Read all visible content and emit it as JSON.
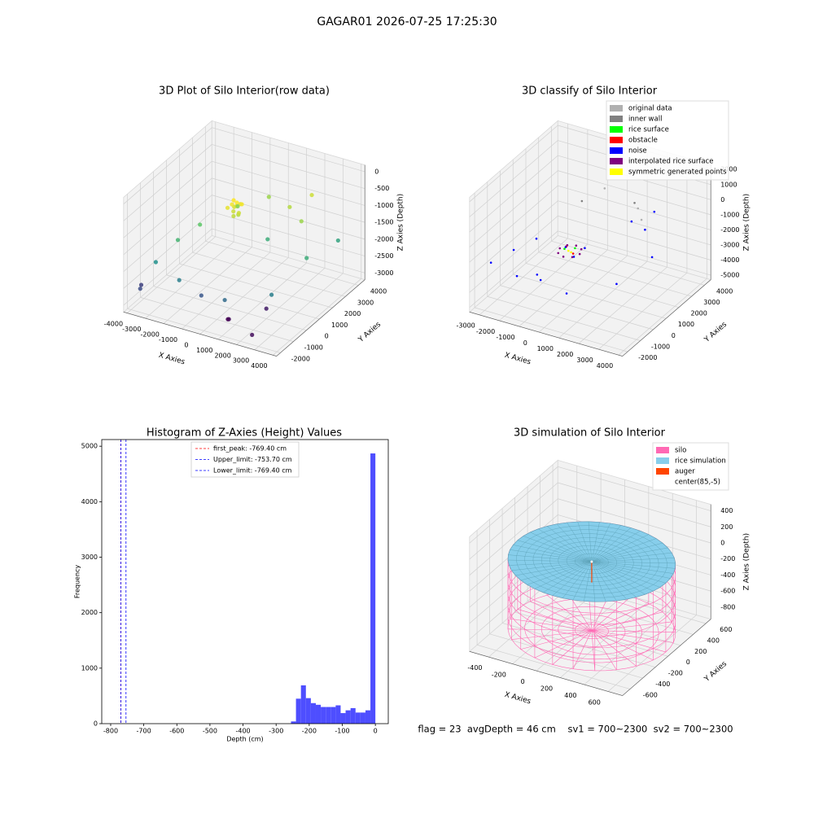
{
  "title": "GAGAR01 2026-07-25 17:25:30",
  "chart_data": [
    {
      "type": "scatter3d",
      "title": "3D Plot of Silo Interior(row data)",
      "xlabel": "X Axies",
      "ylabel": "Y Axies",
      "zlabel": "Z Axies (Depth)",
      "xlim": [
        -4200,
        4200
      ],
      "ylim": [
        -2300,
        4500
      ],
      "zlim": [
        -3200,
        200
      ],
      "xticks": [
        -4000,
        -3000,
        -2000,
        -1000,
        0,
        1000,
        2000,
        3000,
        4000
      ],
      "yticks": [
        -2000,
        -1000,
        0,
        1000,
        2000,
        3000,
        4000
      ],
      "zticks": [
        -3000,
        -2500,
        -2000,
        -1500,
        -1000,
        -500,
        0
      ],
      "colormap": "viridis",
      "points": {
        "x": [
          -700,
          -600,
          -500,
          -450,
          -400,
          -350,
          -300,
          -250,
          -200,
          -550,
          -150,
          -650,
          -3000,
          -2500,
          -2000,
          1500,
          2500,
          3500,
          3000,
          1000,
          -500,
          -1500,
          2000,
          0,
          -1000,
          1000,
          3800,
          -3500,
          -3800,
          800,
          600,
          2500,
          2000
        ],
        "y": [
          800,
          1000,
          1200,
          900,
          1100,
          1300,
          700,
          1000,
          1200,
          1100,
          900,
          1200,
          -1500,
          -500,
          500,
          2500,
          2000,
          1000,
          -1000,
          -1800,
          -1500,
          -1800,
          3500,
          3000,
          2000,
          1500,
          3000,
          -2000,
          -1500,
          -1200,
          -1000,
          -1800,
          0
        ],
        "z": [
          -600,
          -550,
          -650,
          -700,
          -500,
          -600,
          -750,
          -800,
          -550,
          -650,
          -700,
          -500,
          -1800,
          -1400,
          -1200,
          -800,
          -900,
          -1500,
          -2000,
          -2200,
          -2400,
          -2000,
          -700,
          -900,
          -1000,
          -1500,
          -1600,
          -2500,
          -2600,
          -3000,
          -3100,
          -3000,
          -2900
        ]
      }
    },
    {
      "type": "scatter3d",
      "title": "3D classify of Silo Interior",
      "xlabel": "X Axies",
      "ylabel": "Y Axies",
      "zlabel": "Z Axies (Depth)",
      "xlim": [
        -3500,
        4200
      ],
      "ylim": [
        -2400,
        4500
      ],
      "zlim": [
        -5300,
        2300
      ],
      "xticks": [
        -3000,
        -2000,
        -1000,
        0,
        1000,
        2000,
        3000,
        4000
      ],
      "yticks": [
        -2000,
        -1000,
        0,
        1000,
        2000,
        3000,
        4000
      ],
      "zticks": [
        -5000,
        -4000,
        -3000,
        -2000,
        -1000,
        0,
        1000,
        2000
      ],
      "legend": "upper right",
      "series": [
        {
          "name": "original data",
          "color": "#b0b0b0",
          "x": [
            1500,
            2000,
            -500
          ],
          "y": [
            3000,
            2500,
            3500
          ],
          "z": [
            -500,
            -700,
            -300
          ]
        },
        {
          "name": "inner wall",
          "color": "#808080",
          "x": [
            -1000,
            1200
          ],
          "y": [
            2500,
            3200
          ],
          "z": [
            -600,
            -400
          ]
        },
        {
          "name": "rice surface",
          "color": "#00ff00",
          "x": [
            200,
            -200
          ],
          "y": [
            100,
            -100
          ],
          "z": [
            -1500,
            -1550
          ]
        },
        {
          "name": "obstacle",
          "color": "#ff0000",
          "x": [
            300,
            -300
          ],
          "y": [
            -200,
            200
          ],
          "z": [
            -1600,
            -1650
          ]
        },
        {
          "name": "noise",
          "color": "#0000ff",
          "x": [
            -3000,
            -2500,
            -2000,
            -1500,
            1500,
            2500,
            3500,
            3000,
            1000,
            -500,
            500,
            2000,
            -1000,
            400,
            -400
          ],
          "y": [
            -1500,
            -500,
            500,
            -1800,
            2500,
            2000,
            1000,
            -1000,
            -1800,
            -1500,
            400,
            3500,
            -1000,
            -300,
            300
          ],
          "z": [
            -2500,
            -2200,
            -2000,
            -2600,
            -1000,
            -800,
            -1500,
            -2000,
            -2800,
            -2700,
            -1600,
            -900,
            -2900,
            -1700,
            -1800
          ]
        },
        {
          "name": "interpolated rice surface",
          "color": "#800080",
          "x": [
            500,
            354,
            0,
            -354,
            -500,
            -354,
            0,
            354
          ],
          "y": [
            0,
            354,
            500,
            354,
            0,
            -354,
            -500,
            -354
          ],
          "z": [
            -1700,
            -1700,
            -1700,
            -1700,
            -1700,
            -1700,
            -1700,
            -1700
          ]
        },
        {
          "name": "symmetric generated points",
          "color": "#ffff00",
          "x": [
            100,
            -100
          ],
          "y": [
            -50,
            50
          ],
          "z": [
            -1700,
            -1750
          ]
        }
      ]
    },
    {
      "type": "histogram",
      "title": "Histogram of Z-Axies (Height) Values",
      "xlabel": "Depth (cm)",
      "ylabel": "Frequency",
      "xlim": [
        -827,
        39
      ],
      "ylim": [
        0,
        5120
      ],
      "xticks": [
        -800,
        -700,
        -600,
        -500,
        -400,
        -300,
        -200,
        -100,
        0
      ],
      "yticks": [
        0,
        1000,
        2000,
        3000,
        4000,
        5000
      ],
      "color": "#4444ff",
      "bins": [
        -255,
        -240,
        -225,
        -210,
        -195,
        -180,
        -165,
        -150,
        -135,
        -120,
        -105,
        -90,
        -75,
        -60,
        -45,
        -30,
        -15,
        0
      ],
      "counts": [
        40,
        450,
        690,
        460,
        370,
        340,
        300,
        300,
        300,
        330,
        190,
        240,
        280,
        200,
        200,
        240,
        4870
      ],
      "lines": [
        {
          "label": "first_peak: -769.40 cm",
          "value": -769.4,
          "color": "#ff0000"
        },
        {
          "label": "Upper_limit: -753.70 cm",
          "value": -753.7,
          "color": "#0000ff"
        },
        {
          "label": "Lower_limit: -769.40 cm",
          "value": -769.4,
          "color": "#0000ff"
        }
      ]
    },
    {
      "type": "silo3d",
      "title": "3D simulation of Silo Interior",
      "xlabel": "X Axies",
      "ylabel": "Y Axies",
      "zlabel": "Z Axies (Depth)",
      "xlim": [
        -560,
        720
      ],
      "ylim": [
        -720,
        680
      ],
      "zlim": [
        -950,
        480
      ],
      "xticks": [
        -400,
        -200,
        0,
        200,
        400,
        600
      ],
      "yticks": [
        -600,
        -400,
        -200,
        0,
        200,
        400,
        600
      ],
      "zticks": [
        -800,
        -600,
        -400,
        -200,
        0,
        200,
        400
      ],
      "legend": "upper right",
      "series": [
        {
          "name": "silo",
          "color": "#ff69b4",
          "center": [
            85,
            -5
          ],
          "radius": 620,
          "zlim": [
            -900,
            -40
          ]
        },
        {
          "name": "rice simulation",
          "color": "#87ceeb",
          "center": [
            85,
            -5
          ],
          "radius": 620,
          "z": -40
        },
        {
          "name": "auger",
          "color": "#ff4500",
          "x": [
            85,
            85
          ],
          "y": [
            -5,
            -5
          ],
          "z": [
            -40,
            -300
          ]
        },
        {
          "name": "center(85,-5)",
          "x": [
            85
          ],
          "y": [
            -5
          ],
          "z": [
            -40
          ]
        }
      ],
      "annotation": "flag = 23  avgDepth = 46 cm    sv1 = 700~2300  sv2 = 700~2300"
    }
  ]
}
